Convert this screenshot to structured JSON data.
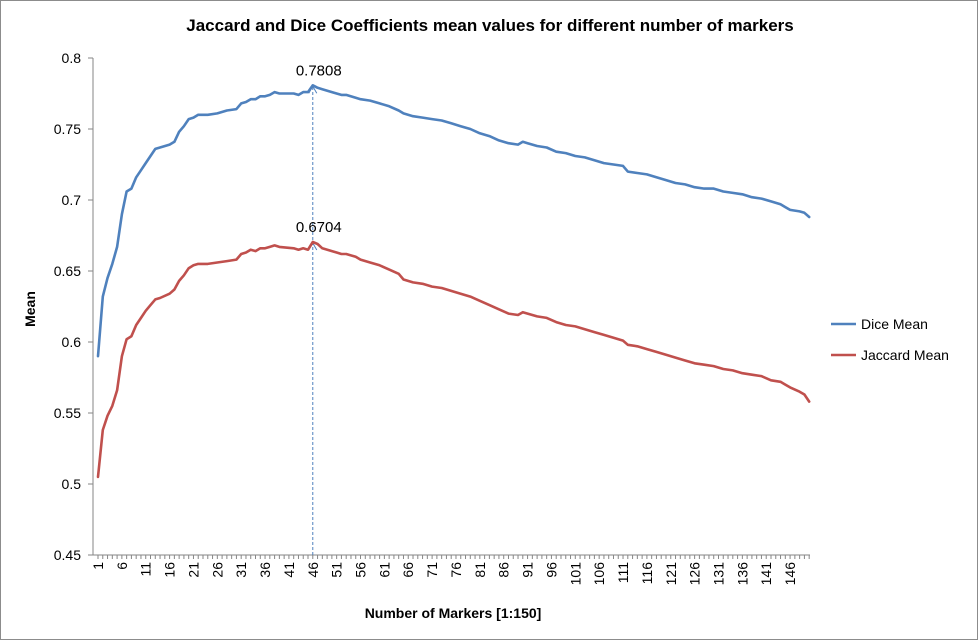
{
  "chart_data": {
    "type": "line",
    "title": "Jaccard and Dice Coefficients mean values for different number of markers",
    "xlabel": "Number of Markers [1:150]",
    "ylabel": "Mean",
    "ylim": [
      0.45,
      0.8
    ],
    "yticks": [
      "0.45",
      "0.5",
      "0.55",
      "0.6",
      "0.65",
      "0.7",
      "0.75",
      "0.8"
    ],
    "xlim": [
      1,
      150
    ],
    "xticks": [
      "1",
      "6",
      "11",
      "16",
      "21",
      "26",
      "31",
      "36",
      "41",
      "46",
      "51",
      "56",
      "61",
      "66",
      "71",
      "76",
      "81",
      "86",
      "91",
      "96",
      "101",
      "106",
      "111",
      "116",
      "121",
      "126",
      "131",
      "136",
      "141",
      "146"
    ],
    "grid": false,
    "legend": "right",
    "series": [
      {
        "name": "Dice Mean",
        "color": "#4f81bd",
        "points": [
          [
            1,
            0.59
          ],
          [
            2,
            0.632
          ],
          [
            3,
            0.645
          ],
          [
            4,
            0.655
          ],
          [
            5,
            0.667
          ],
          [
            6,
            0.69
          ],
          [
            7,
            0.706
          ],
          [
            8,
            0.708
          ],
          [
            9,
            0.716
          ],
          [
            10,
            0.721
          ],
          [
            11,
            0.726
          ],
          [
            12,
            0.731
          ],
          [
            13,
            0.736
          ],
          [
            14,
            0.737
          ],
          [
            16,
            0.739
          ],
          [
            17,
            0.741
          ],
          [
            18,
            0.748
          ],
          [
            19,
            0.752
          ],
          [
            20,
            0.757
          ],
          [
            21,
            0.758
          ],
          [
            22,
            0.76
          ],
          [
            24,
            0.76
          ],
          [
            26,
            0.761
          ],
          [
            28,
            0.763
          ],
          [
            30,
            0.764
          ],
          [
            31,
            0.768
          ],
          [
            32,
            0.769
          ],
          [
            33,
            0.771
          ],
          [
            34,
            0.771
          ],
          [
            35,
            0.773
          ],
          [
            36,
            0.773
          ],
          [
            37,
            0.774
          ],
          [
            38,
            0.776
          ],
          [
            39,
            0.775
          ],
          [
            42,
            0.775
          ],
          [
            43,
            0.774
          ],
          [
            44,
            0.776
          ],
          [
            45,
            0.776
          ],
          [
            46,
            0.7808
          ],
          [
            47,
            0.779
          ],
          [
            48,
            0.778
          ],
          [
            50,
            0.776
          ],
          [
            51,
            0.775
          ],
          [
            52,
            0.774
          ],
          [
            53,
            0.774
          ],
          [
            55,
            0.772
          ],
          [
            56,
            0.771
          ],
          [
            58,
            0.77
          ],
          [
            60,
            0.768
          ],
          [
            62,
            0.766
          ],
          [
            64,
            0.763
          ],
          [
            65,
            0.761
          ],
          [
            67,
            0.759
          ],
          [
            69,
            0.758
          ],
          [
            71,
            0.757
          ],
          [
            73,
            0.756
          ],
          [
            75,
            0.754
          ],
          [
            77,
            0.752
          ],
          [
            79,
            0.75
          ],
          [
            81,
            0.747
          ],
          [
            83,
            0.745
          ],
          [
            85,
            0.742
          ],
          [
            87,
            0.74
          ],
          [
            89,
            0.739
          ],
          [
            90,
            0.741
          ],
          [
            91,
            0.74
          ],
          [
            93,
            0.738
          ],
          [
            95,
            0.737
          ],
          [
            97,
            0.734
          ],
          [
            99,
            0.733
          ],
          [
            101,
            0.731
          ],
          [
            103,
            0.73
          ],
          [
            105,
            0.728
          ],
          [
            107,
            0.726
          ],
          [
            109,
            0.725
          ],
          [
            111,
            0.724
          ],
          [
            112,
            0.72
          ],
          [
            114,
            0.719
          ],
          [
            116,
            0.718
          ],
          [
            118,
            0.716
          ],
          [
            120,
            0.714
          ],
          [
            122,
            0.712
          ],
          [
            124,
            0.711
          ],
          [
            126,
            0.709
          ],
          [
            128,
            0.708
          ],
          [
            130,
            0.708
          ],
          [
            132,
            0.706
          ],
          [
            134,
            0.705
          ],
          [
            136,
            0.704
          ],
          [
            138,
            0.702
          ],
          [
            140,
            0.701
          ],
          [
            142,
            0.699
          ],
          [
            144,
            0.697
          ],
          [
            145,
            0.695
          ],
          [
            146,
            0.693
          ],
          [
            148,
            0.692
          ],
          [
            149,
            0.691
          ],
          [
            150,
            0.688
          ]
        ]
      },
      {
        "name": "Jaccard Mean",
        "color": "#c0504d",
        "points": [
          [
            1,
            0.505
          ],
          [
            2,
            0.538
          ],
          [
            3,
            0.548
          ],
          [
            4,
            0.555
          ],
          [
            5,
            0.566
          ],
          [
            6,
            0.59
          ],
          [
            7,
            0.602
          ],
          [
            8,
            0.604
          ],
          [
            9,
            0.612
          ],
          [
            10,
            0.617
          ],
          [
            11,
            0.622
          ],
          [
            12,
            0.626
          ],
          [
            13,
            0.63
          ],
          [
            14,
            0.631
          ],
          [
            16,
            0.634
          ],
          [
            17,
            0.637
          ],
          [
            18,
            0.643
          ],
          [
            19,
            0.647
          ],
          [
            20,
            0.652
          ],
          [
            21,
            0.654
          ],
          [
            22,
            0.655
          ],
          [
            24,
            0.655
          ],
          [
            26,
            0.656
          ],
          [
            28,
            0.657
          ],
          [
            30,
            0.658
          ],
          [
            31,
            0.662
          ],
          [
            32,
            0.663
          ],
          [
            33,
            0.665
          ],
          [
            34,
            0.664
          ],
          [
            35,
            0.666
          ],
          [
            36,
            0.666
          ],
          [
            37,
            0.667
          ],
          [
            38,
            0.668
          ],
          [
            39,
            0.667
          ],
          [
            42,
            0.666
          ],
          [
            43,
            0.665
          ],
          [
            44,
            0.666
          ],
          [
            45,
            0.665
          ],
          [
            46,
            0.6704
          ],
          [
            47,
            0.669
          ],
          [
            48,
            0.666
          ],
          [
            50,
            0.664
          ],
          [
            51,
            0.663
          ],
          [
            52,
            0.662
          ],
          [
            53,
            0.662
          ],
          [
            55,
            0.66
          ],
          [
            56,
            0.658
          ],
          [
            58,
            0.656
          ],
          [
            60,
            0.654
          ],
          [
            62,
            0.651
          ],
          [
            64,
            0.648
          ],
          [
            65,
            0.644
          ],
          [
            67,
            0.642
          ],
          [
            69,
            0.641
          ],
          [
            71,
            0.639
          ],
          [
            73,
            0.638
          ],
          [
            75,
            0.636
          ],
          [
            77,
            0.634
          ],
          [
            79,
            0.632
          ],
          [
            81,
            0.629
          ],
          [
            83,
            0.626
          ],
          [
            85,
            0.623
          ],
          [
            87,
            0.62
          ],
          [
            89,
            0.619
          ],
          [
            90,
            0.621
          ],
          [
            91,
            0.62
          ],
          [
            93,
            0.618
          ],
          [
            95,
            0.617
          ],
          [
            97,
            0.614
          ],
          [
            99,
            0.612
          ],
          [
            101,
            0.611
          ],
          [
            103,
            0.609
          ],
          [
            105,
            0.607
          ],
          [
            107,
            0.605
          ],
          [
            109,
            0.603
          ],
          [
            111,
            0.601
          ],
          [
            112,
            0.598
          ],
          [
            114,
            0.597
          ],
          [
            116,
            0.595
          ],
          [
            118,
            0.593
          ],
          [
            120,
            0.591
          ],
          [
            122,
            0.589
          ],
          [
            124,
            0.587
          ],
          [
            126,
            0.585
          ],
          [
            128,
            0.584
          ],
          [
            130,
            0.583
          ],
          [
            132,
            0.581
          ],
          [
            134,
            0.58
          ],
          [
            136,
            0.578
          ],
          [
            138,
            0.577
          ],
          [
            140,
            0.576
          ],
          [
            142,
            0.573
          ],
          [
            144,
            0.572
          ],
          [
            145,
            0.57
          ],
          [
            146,
            0.568
          ],
          [
            148,
            0.565
          ],
          [
            149,
            0.563
          ],
          [
            150,
            0.558
          ]
        ]
      }
    ],
    "annotations": [
      {
        "text": "0.7808",
        "x": 46,
        "y": 0.7808
      },
      {
        "text": "0.6704",
        "x": 46,
        "y": 0.6704
      }
    ]
  }
}
